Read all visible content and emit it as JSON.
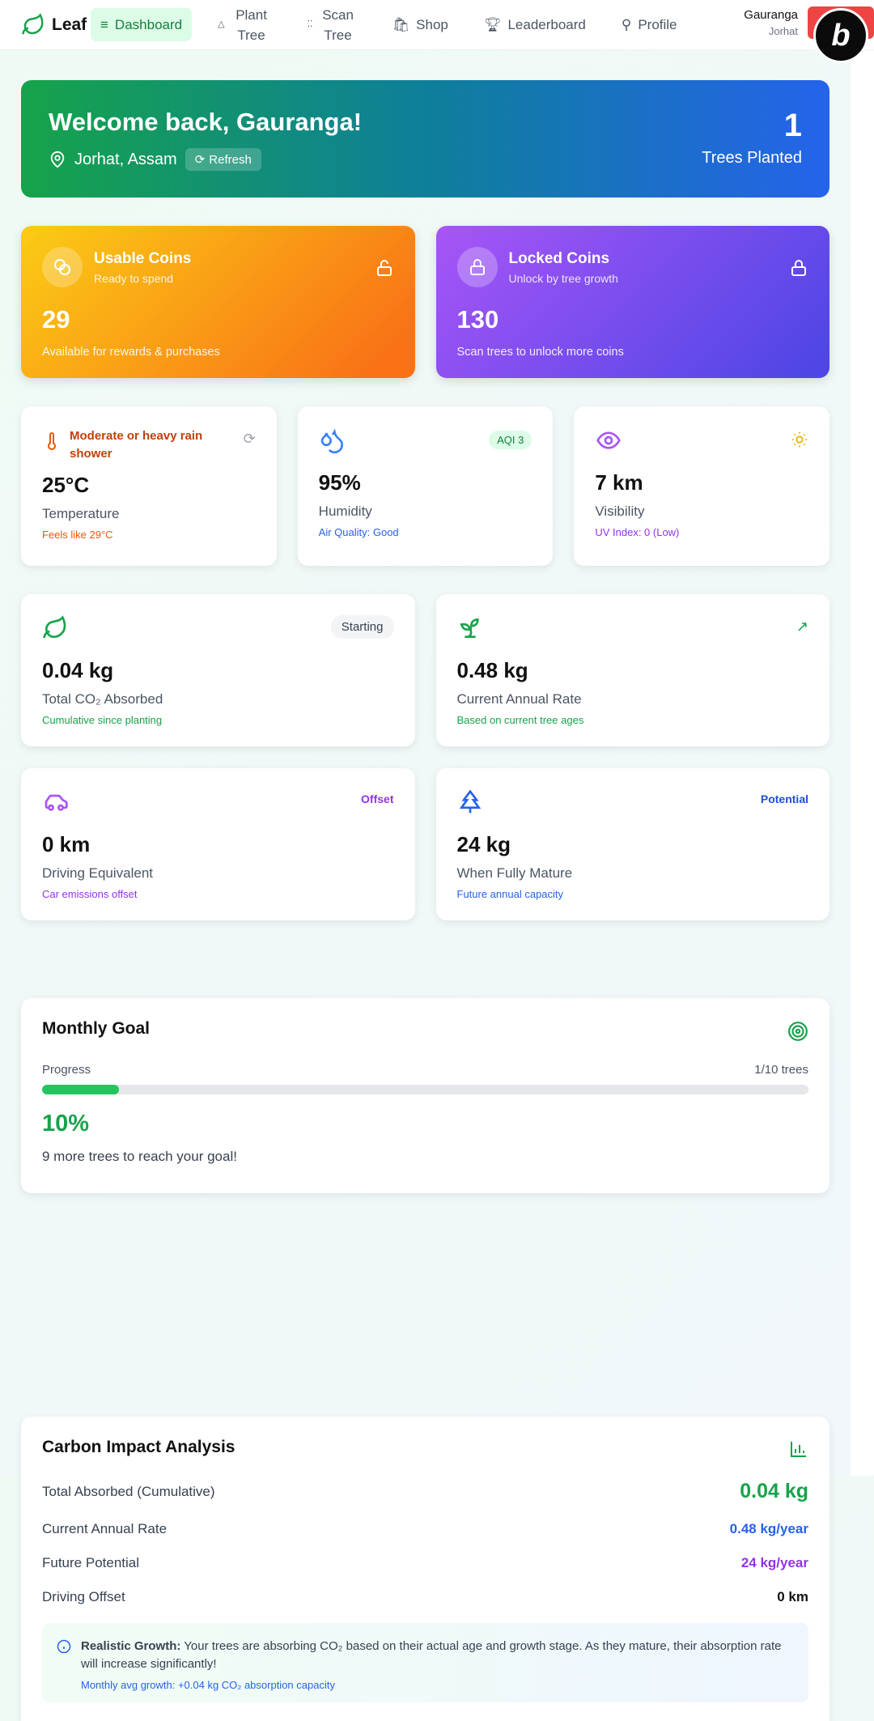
{
  "nav": {
    "brand": "Leaf",
    "items": [
      "Dashboard",
      "Plant Tree",
      "Scan Tree",
      "Shop",
      "Leaderboard",
      "Profile"
    ],
    "user_name": "Gauranga",
    "user_location": "Jorhat",
    "badge": "b"
  },
  "welcome": {
    "title": "Welcome back, Gauranga!",
    "location": "Jorhat, Assam",
    "refresh": "Refresh",
    "trees_count": "1",
    "trees_label": "Trees Planted"
  },
  "coins": [
    {
      "title": "Usable Coins",
      "subtitle": "Ready to spend",
      "amount": "29",
      "note": "Available for rewards & purchases"
    },
    {
      "title": "Locked Coins",
      "subtitle": "Unlock by tree growth",
      "amount": "130",
      "note": "Scan trees to unlock more coins"
    }
  ],
  "weather": [
    {
      "tag": "Moderate or heavy rain shower",
      "value": "25°C",
      "label": "Temperature",
      "note": "Feels like 29°C"
    },
    {
      "tag": "AQI 3",
      "value": "95%",
      "label": "Humidity",
      "note": "Air Quality: Good"
    },
    {
      "value": "7 km",
      "label": "Visibility",
      "note": "UV Index: 0 (Low)"
    }
  ],
  "stats": [
    {
      "tag": "Starting",
      "value": "0.04 kg",
      "label": "Total CO₂ Absorbed",
      "note": "Cumulative since planting"
    },
    {
      "value": "0.48 kg",
      "label": "Current Annual Rate",
      "note": "Based on current tree ages"
    },
    {
      "tag": "Offset",
      "value": "0 km",
      "label": "Driving Equivalent",
      "note": "Car emissions offset"
    },
    {
      "tag": "Potential",
      "value": "24 kg",
      "label": "When Fully Mature",
      "note": "Future annual capacity"
    }
  ],
  "goal": {
    "title": "Monthly Goal",
    "progress_label": "Progress",
    "count": "1/10 trees",
    "progress": {
      "value": 10,
      "label": "10%"
    },
    "message": "9 more trees to reach your goal!"
  },
  "analysis": {
    "title": "Carbon Impact Analysis",
    "rows": [
      [
        "Total Absorbed (Cumulative)",
        "0.04 kg"
      ],
      [
        "Current Annual Rate",
        "0.48 kg/year"
      ],
      [
        "Future Potential",
        "24 kg/year"
      ],
      [
        "Driving Offset",
        "0 km"
      ]
    ],
    "info_title": "Realistic Growth:",
    "info_text": "Your trees are absorbing CO₂ based on their actual age and growth stage. As they mature, their absorption rate will increase significantly!",
    "info_note": "Monthly avg growth: +0.04 kg CO₂ absorption capacity"
  }
}
